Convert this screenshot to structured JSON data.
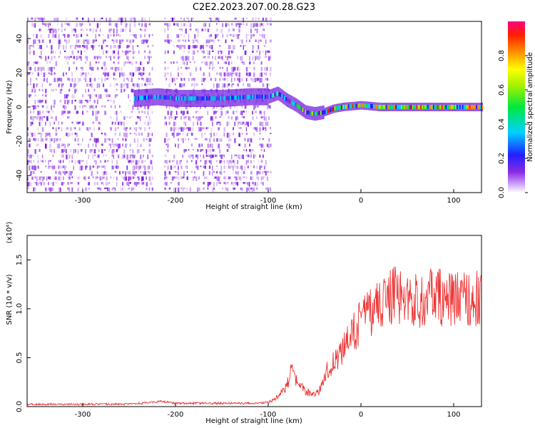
{
  "title": "C2E2.2023.207.00.28.G23",
  "chart_data": [
    {
      "type": "heatmap",
      "xlabel": "Height of straight line (km)",
      "ylabel": "Frequency (Hz)",
      "xlim": [
        -360,
        130
      ],
      "ylim": [
        -50,
        50
      ],
      "x_ticks": [
        -300,
        -200,
        -100,
        0,
        100
      ],
      "y_ticks": [
        -40,
        -20,
        0,
        20,
        40
      ],
      "colorbar": {
        "label": "Normalized spectral amplitude",
        "range": [
          0,
          1
        ],
        "ticks": [
          "0.0",
          "0.2",
          "0.4",
          "0.6",
          "0.8"
        ],
        "colormap": "rainbow"
      },
      "noise_segments_km": [
        [
          -360,
          -225
        ],
        [
          -212,
          -98
        ]
      ],
      "center_line": {
        "x": [
          -245,
          -220,
          -200,
          -150,
          -120,
          -100,
          -90,
          -80,
          -70,
          -60,
          -50,
          -40,
          -30,
          -20,
          0,
          20,
          60,
          100,
          130
        ],
        "freq": [
          5,
          6,
          5,
          5,
          6,
          6,
          8,
          4,
          1,
          -3,
          -4,
          -3,
          -1,
          0,
          1,
          0,
          0,
          0,
          0
        ]
      }
    },
    {
      "type": "line",
      "xlabel": "Height of straight line (km)",
      "ylabel": "SNR (10 * v/v)",
      "y_multiplier": "(x10⁴)",
      "xlim": [
        -360,
        130
      ],
      "ylim": [
        0,
        1.75
      ],
      "x_ticks": [
        -300,
        -200,
        -100,
        0,
        100
      ],
      "y_ticks": [
        "0.0",
        "0.5",
        "1.0",
        "1.5"
      ],
      "line_color": "#ee3333",
      "envelope": {
        "x": [
          -360,
          -250,
          -225,
          -215,
          -200,
          -150,
          -110,
          -100,
          -90,
          -80,
          -75,
          -70,
          -60,
          -50,
          -45,
          -40,
          -30,
          -20,
          -10,
          0,
          10,
          20,
          30,
          40,
          60,
          80,
          100,
          115,
          130
        ],
        "y": [
          0.02,
          0.02,
          0.04,
          0.05,
          0.03,
          0.03,
          0.03,
          0.04,
          0.1,
          0.2,
          0.35,
          0.25,
          0.15,
          0.12,
          0.15,
          0.3,
          0.45,
          0.55,
          0.7,
          0.85,
          0.95,
          1.0,
          1.1,
          1.1,
          1.05,
          1.1,
          1.05,
          1.1,
          1.05
        ]
      }
    }
  ]
}
